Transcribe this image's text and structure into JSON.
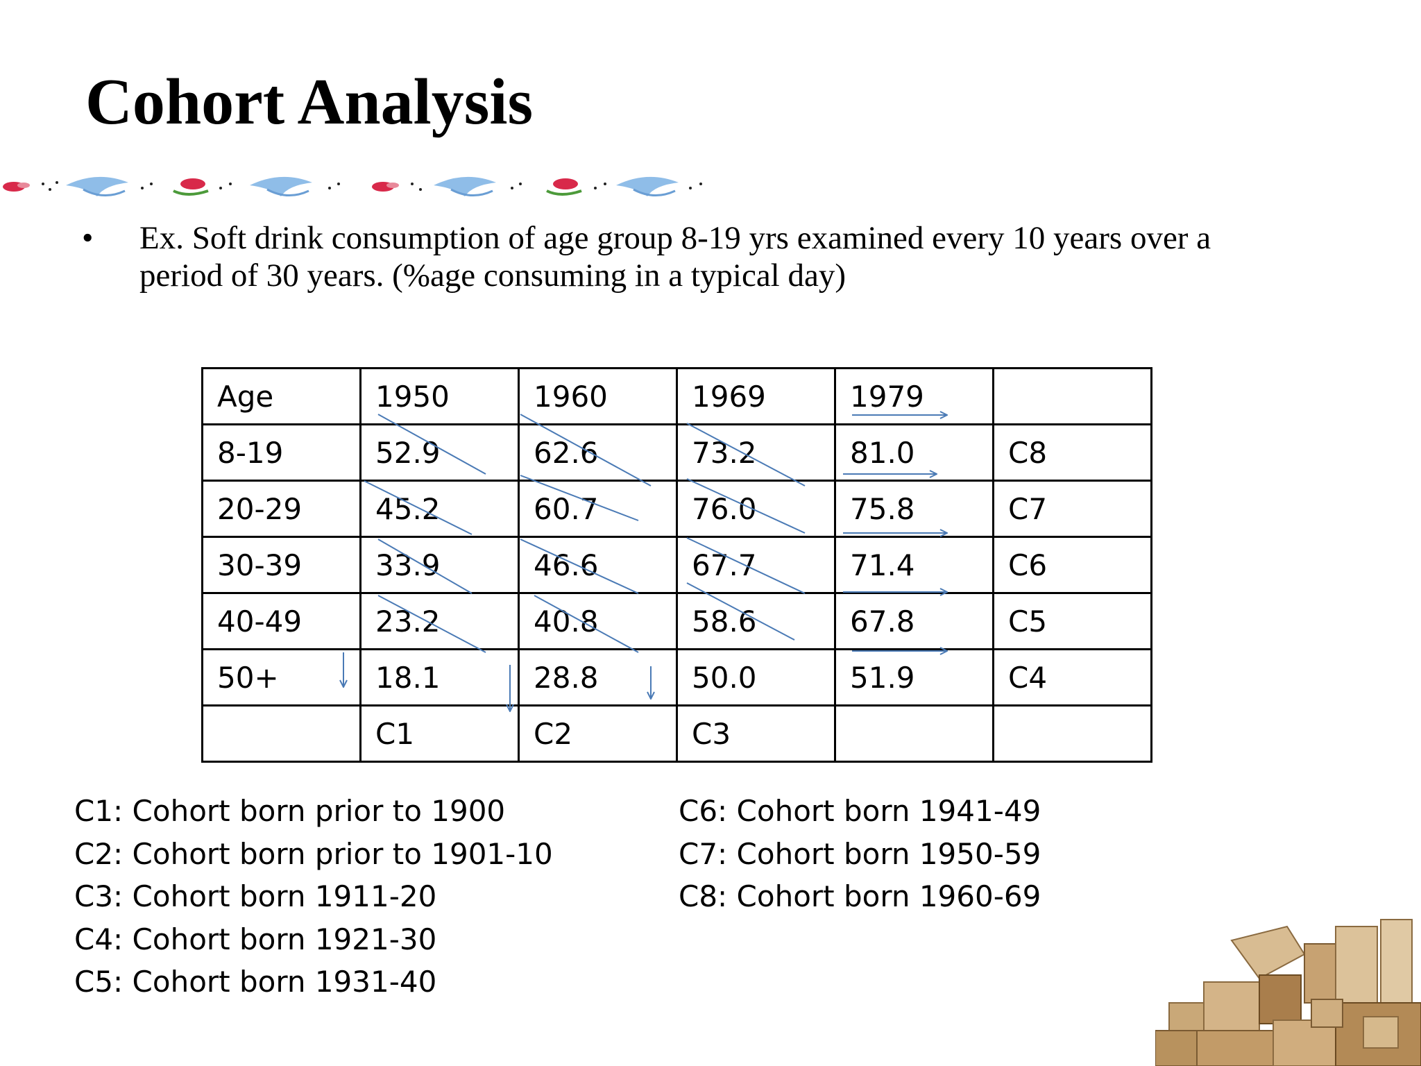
{
  "slide": {
    "title": "Cohort Analysis",
    "bullet_mark": "•",
    "bullet_text": "Ex. Soft drink consumption of age group 8-19 yrs examined every 10 years over a period of 30 years. (%age consuming in a typical day)"
  },
  "table": {
    "header": [
      "Age",
      "1950",
      "1960",
      "1969",
      "1979",
      ""
    ],
    "rows": [
      [
        "8-19",
        "52.9",
        "62.6",
        "73.2",
        "81.0",
        "C8"
      ],
      [
        "20-29",
        "45.2",
        "60.7",
        "76.0",
        "75.8",
        "C7"
      ],
      [
        "30-39",
        "33.9",
        "46.6",
        "67.7",
        "71.4",
        "C6"
      ],
      [
        "40-49",
        "23.2",
        "40.8",
        "58.6",
        "67.8",
        "C5"
      ],
      [
        "50+",
        "18.1",
        "28.8",
        "50.0",
        "51.9",
        "C4"
      ],
      [
        "",
        "C1",
        "C2",
        "C3",
        "",
        ""
      ]
    ]
  },
  "legend": {
    "left": [
      "C1: Cohort born prior to 1900",
      "C2: Cohort born prior to 1901-10",
      "C3: Cohort born 1911-20",
      "C4: Cohort born 1921-30",
      "C5: Cohort born 1931-40"
    ],
    "right": [
      "C6: Cohort born 1941-49",
      "C7: Cohort born 1950-59",
      "C8: Cohort born 1960-69"
    ]
  },
  "colors": {
    "annotation": "#4a7ab5",
    "grid": "#000000"
  }
}
